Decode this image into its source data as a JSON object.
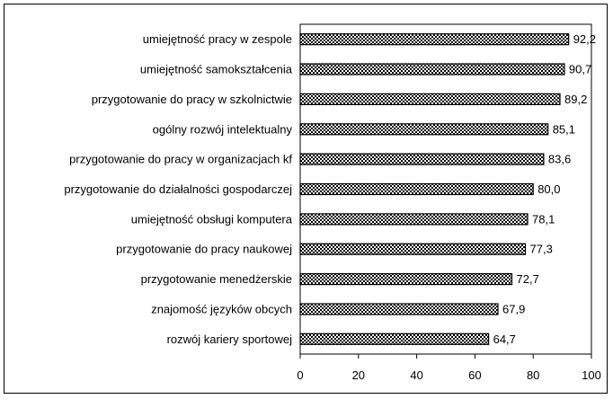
{
  "chart_data": {
    "type": "bar",
    "orientation": "horizontal",
    "categories": [
      "umiejętność pracy w zespole",
      "umiejętność samokształcenia",
      "przygotowanie do pracy w szkolnictwie",
      "ogólny rozwój intelektualny",
      "przygotowanie do pracy w organizacjach kf",
      "przygotowanie do działalności gospodarczej",
      "umiejętność obsługi komputera",
      "przygotowanie do pracy naukowej",
      "przygotowanie menedżerskie",
      "znajomość języków obcych",
      "rozwój kariery sportowej"
    ],
    "values": [
      92.2,
      90.7,
      89.2,
      85.1,
      83.6,
      80.0,
      78.1,
      77.3,
      72.7,
      67.9,
      64.7
    ],
    "value_labels": [
      "92,2",
      "90,7",
      "89,2",
      "85,1",
      "83,6",
      "80,0",
      "78,1",
      "77,3",
      "72,7",
      "67,9",
      "64,7"
    ],
    "xlim": [
      0,
      100
    ],
    "xticks": [
      0,
      20,
      40,
      60,
      80,
      100
    ],
    "title": "",
    "xlabel": "",
    "ylabel": "",
    "grid": false,
    "legend": "none",
    "bar_pattern": "checkered",
    "colors": {
      "bar_fill": "#ffffff",
      "bar_pattern": "#000000",
      "border": "#000000"
    }
  }
}
